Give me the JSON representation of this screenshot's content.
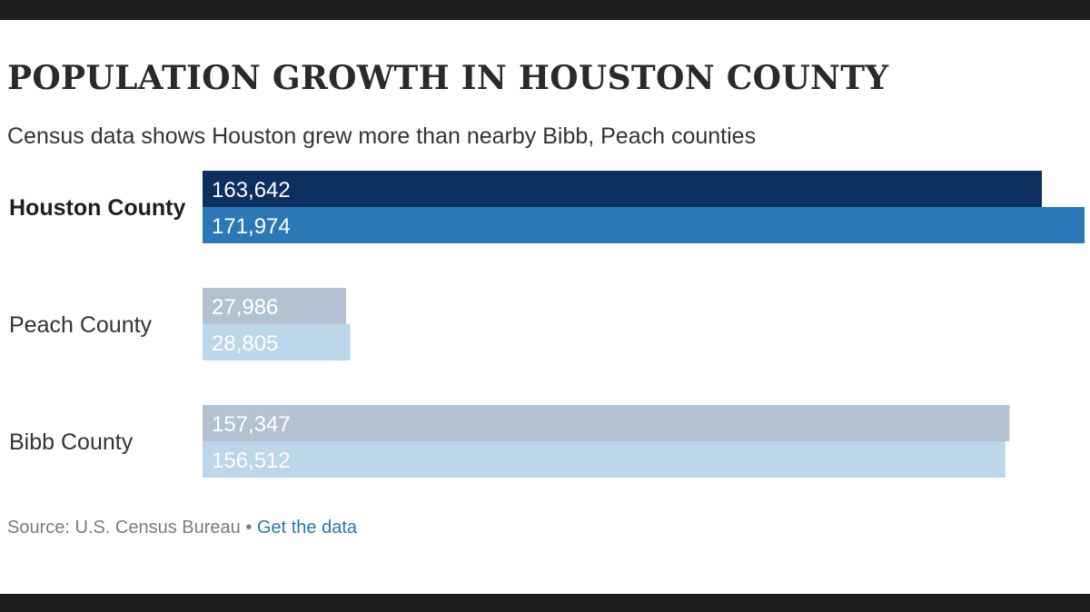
{
  "title": "POPULATION GROWTH IN HOUSTON COUNTY",
  "subtitle": "Census data shows Houston grew more than nearby Bibb, Peach counties",
  "source": {
    "text": "Source: U.S. Census Bureau",
    "separator": "•",
    "link_label": "Get the data"
  },
  "colors": {
    "houston_first": "#0d2f5f",
    "houston_second": "#2a79b6",
    "other_first": "#b3c2d1",
    "other_second": "#bcd6ea",
    "frame": "#1c1c1c",
    "link": "#2479b0"
  },
  "chart_data": {
    "type": "bar",
    "orientation": "horizontal",
    "grouped": true,
    "categories": [
      "Houston County",
      "Peach County",
      "Bibb County"
    ],
    "highlighted_category": "Houston County",
    "series": [
      {
        "values": [
          163642,
          27986,
          157347
        ]
      },
      {
        "values": [
          171974,
          28805,
          156512
        ]
      }
    ],
    "value_labels": [
      [
        "163,642",
        "171,974"
      ],
      [
        "27,986",
        "28,805"
      ],
      [
        "157,347",
        "156,512"
      ]
    ],
    "xlim": [
      0,
      171974
    ],
    "axis": "none",
    "grid": false,
    "legend": "none"
  }
}
